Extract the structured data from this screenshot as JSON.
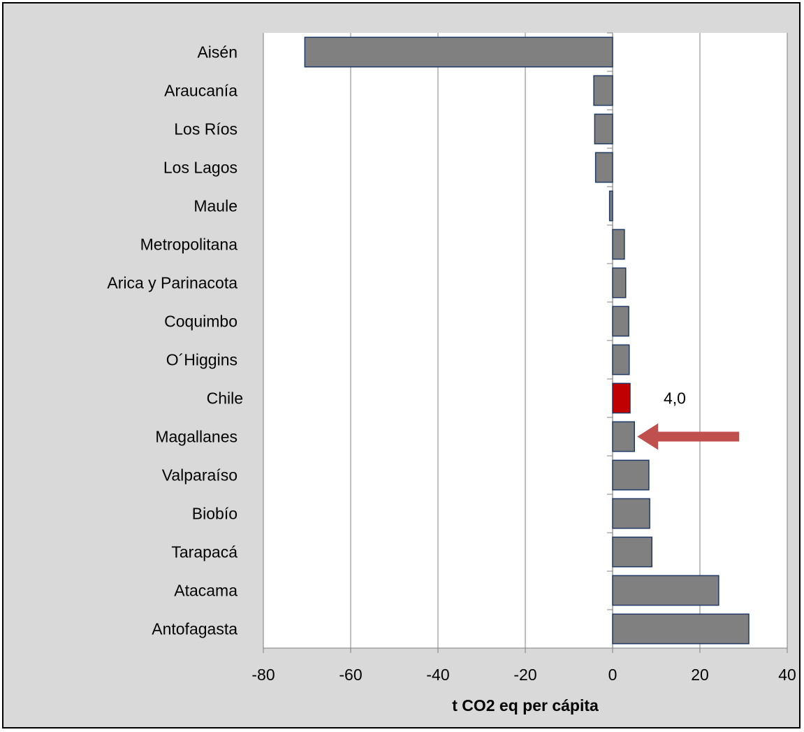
{
  "chart_data": {
    "type": "bar",
    "orientation": "horizontal",
    "categories": [
      "Aisén",
      "Araucanía",
      "Los Ríos",
      "Los Lagos",
      "Maule",
      "Metropolitana",
      "Arica y Parinacota",
      "Coquimbo",
      "O´Higgins",
      "Chile",
      "Magallanes",
      "Valparaíso",
      "Biobío",
      "Tarapacá",
      "Atacama",
      "Antofagasta"
    ],
    "values": [
      -70.5,
      -4.3,
      -4.1,
      -3.9,
      -0.7,
      2.7,
      3.0,
      3.7,
      3.8,
      4.0,
      5.0,
      8.3,
      8.5,
      9.0,
      24.3,
      31.2
    ],
    "highlight_category": "Chile",
    "highlight_label": "4,0",
    "annotation": "arrow pointing at Magallanes",
    "xlabel": "t CO2 eq per cápita",
    "ylabel": "",
    "title": "",
    "xlim": [
      -80,
      40
    ],
    "xticks": [
      -80,
      -60,
      -40,
      -20,
      0,
      20,
      40
    ],
    "grid": "vertical",
    "legend": "none",
    "colors": {
      "bar": "#808080",
      "bar_border": "#1f3864",
      "highlight": "#c00000",
      "arrow": "#c0504d",
      "plot_bg": "#ffffff",
      "chart_bg": "#d9d9d9",
      "grid": "#808080"
    }
  }
}
